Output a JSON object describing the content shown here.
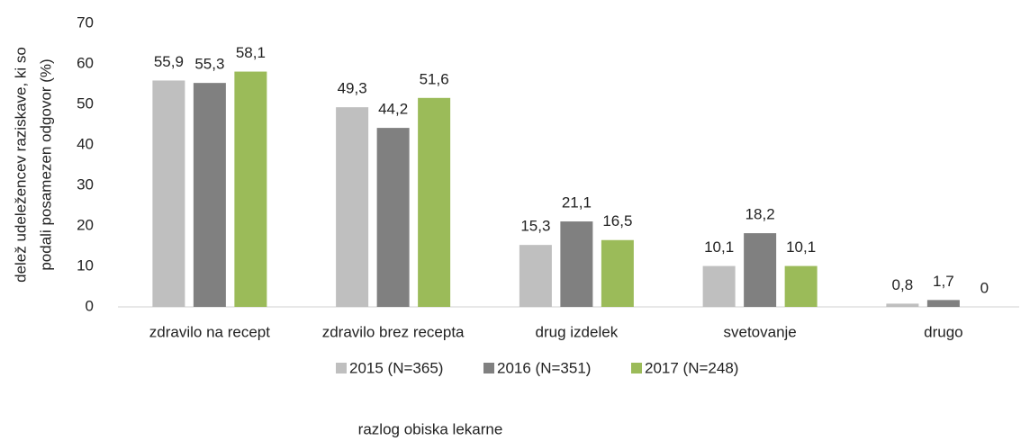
{
  "chart_data": {
    "type": "bar",
    "ylabel": [
      "delež udeležencev raziskave, ki so",
      "podali posamezen odgovor (%)"
    ],
    "xlabel": "razlog obiska lekarne",
    "categories": [
      "zdravilo na recept",
      "zdravilo brez recepta",
      "drug izdelek",
      "svetovanje",
      "drugo"
    ],
    "series": [
      {
        "name": "2015 (N=365)",
        "color": "#bfbfbf",
        "values": [
          55.9,
          49.3,
          15.3,
          10.1,
          0.8
        ],
        "value_labels": [
          "55,9",
          "49,3",
          "15,3",
          "10,1",
          "0,8"
        ]
      },
      {
        "name": "2016 (N=351)",
        "color": "#808080",
        "values": [
          55.3,
          44.2,
          21.1,
          18.2,
          1.7
        ],
        "value_labels": [
          "55,3",
          "44,2",
          "21,1",
          "18,2",
          "1,7"
        ]
      },
      {
        "name": "2017 (N=248)",
        "color": "#9bbb59",
        "values": [
          58.1,
          51.6,
          16.5,
          10.1,
          0
        ],
        "value_labels": [
          "58,1",
          "51,6",
          "16,5",
          "10,1",
          "0"
        ]
      }
    ],
    "ylim": [
      0,
      70
    ],
    "yticks": [
      0,
      10,
      20,
      30,
      40,
      50,
      60,
      70
    ],
    "grid": false
  }
}
